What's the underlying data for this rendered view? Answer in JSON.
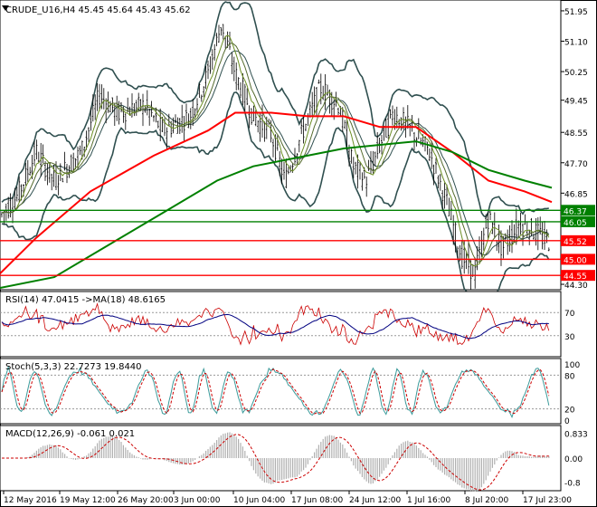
{
  "main": {
    "title": "CRUDE_U16,H4  45.45 45.64 45.43 45.62",
    "price_axis": [
      "51.95",
      "51.10",
      "50.25",
      "49.45",
      "48.55",
      "47.70",
      "46.85",
      "44.30"
    ],
    "levels": [
      {
        "value": "46.37",
        "color": "#008000"
      },
      {
        "value": "46.05",
        "color": "#008000"
      },
      {
        "value": "45.52",
        "color": "#ff0000"
      },
      {
        "value": "45.00",
        "color": "#ff0000"
      },
      {
        "value": "44.55",
        "color": "#ff0000"
      }
    ]
  },
  "rsi": {
    "title": "RSI(14) 47.0415  ->MA(18) 48.6165",
    "axis": [
      "70",
      "30"
    ]
  },
  "stoch": {
    "title": "Stoch(5,3,3) 22.7273 19.8440",
    "axis": [
      "100",
      "80",
      "20",
      "0"
    ]
  },
  "macd": {
    "title": "MACD(12,26,9) -0.061 0.021",
    "axis": [
      "0.833",
      "0.00",
      "-0.8"
    ]
  },
  "time_axis": [
    "12 May 2016",
    "19 May 12:00",
    "26 May 20:00",
    "3 Jun 00:00",
    "10 Jun 04:00",
    "17 Jun 08:00",
    "24 Jun 12:00",
    "1 Jul 16:00",
    "8 Jul 20:00",
    "17 Jul 23:00"
  ],
  "colors": {
    "ma_green": "#008000",
    "ma_red": "#ff0000",
    "bands": "#2f4f4f",
    "rsi": "#cc0000",
    "rsi_ma": "#000080",
    "stoch_main": "#3a9a9a",
    "stoch_signal": "#cc0000"
  }
}
